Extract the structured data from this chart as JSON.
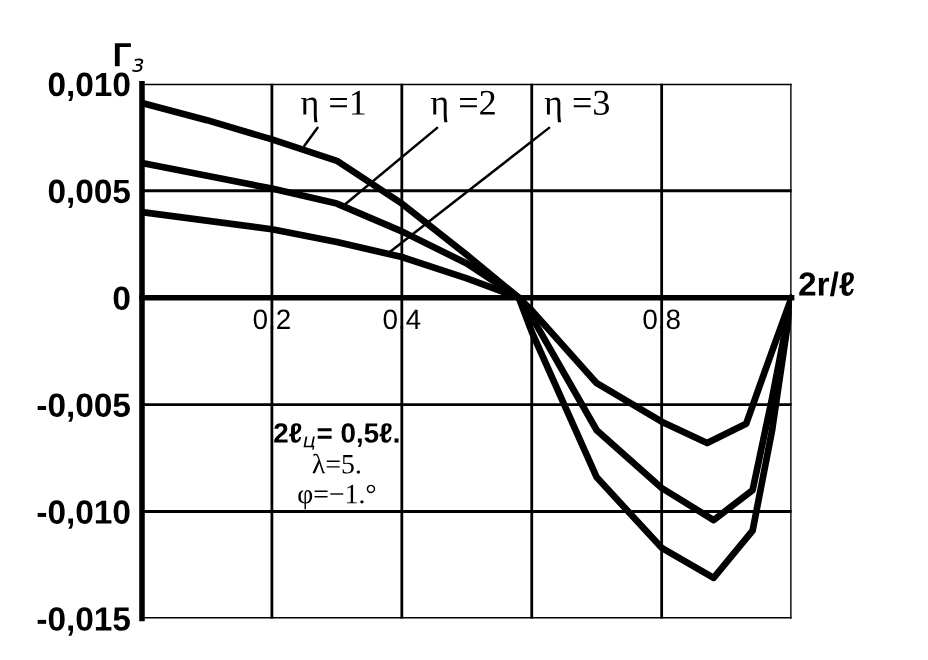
{
  "chart_data": {
    "type": "line",
    "xlabel": "2r/ℓ",
    "ylabel": "Г$_{з}$",
    "xlim": [
      0,
      1.0
    ],
    "ylim": [
      -0.015,
      0.01
    ],
    "xticks": [
      {
        "value": 0.2,
        "label": "0,2"
      },
      {
        "value": 0.4,
        "label": "0,4"
      },
      {
        "value": 0.6,
        "label": null
      },
      {
        "value": 0.8,
        "label": "0,8"
      },
      {
        "value": 1.0,
        "label": null
      }
    ],
    "yticks": [
      {
        "value": -0.015,
        "label": "-0,015"
      },
      {
        "value": -0.01,
        "label": "-0,010"
      },
      {
        "value": -0.005,
        "label": "-0,005"
      },
      0,
      {
        "value": 0.005,
        "label": "0,005"
      },
      {
        "value": 0.01,
        "label": "0,010"
      }
    ],
    "grid": true,
    "marker": "none",
    "line_style": "solid",
    "series": [
      {
        "color": "#000000",
        "x": [
          0,
          0.1,
          0.2,
          0.3,
          0.4,
          0.5,
          0.58,
          0.6,
          0.7,
          0.8,
          0.88,
          0.94,
          0.97,
          1.0
        ],
        "values": [
          0.0091,
          0.0083,
          0.0074,
          0.0064,
          0.0044,
          0.002,
          0,
          -0.0016,
          -0.0084,
          -0.0117,
          -0.0131,
          -0.0109,
          -0.0062,
          0
        ]
      },
      {
        "color": "#000000",
        "x": [
          0,
          0.2,
          0.3,
          0.4,
          0.5,
          0.58,
          0.6,
          0.7,
          0.8,
          0.88,
          0.94,
          0.97,
          1.0
        ],
        "values": [
          0.0063,
          0.0051,
          0.0044,
          0.0031,
          0.0016,
          0,
          -0.0009,
          -0.0062,
          -0.0089,
          -0.0104,
          -0.009,
          -0.0047,
          0
        ]
      },
      {
        "color": "#000000",
        "x": [
          0,
          0.2,
          0.3,
          0.4,
          0.5,
          0.58,
          0.6,
          0.7,
          0.8,
          0.87,
          0.93,
          0.97,
          1.0
        ],
        "values": [
          0.004,
          0.0032,
          0.0026,
          0.0019,
          0.0009,
          0,
          -0.0006,
          -0.004,
          -0.0058,
          -0.0068,
          -0.0059,
          -0.0025,
          0
        ]
      }
    ],
    "annotations": [
      {
        "text": "η =1",
        "x": 0.25,
        "y": 0.0071
      },
      {
        "text": "η =2",
        "x": 0.31,
        "y": 0.0043
      },
      {
        "text": "η =3",
        "x": 0.38,
        "y": 0.0021
      },
      "2ℓ$_{ц}$= 0,5ℓ.",
      "λ=5.",
      "φ=−1.°"
    ]
  }
}
